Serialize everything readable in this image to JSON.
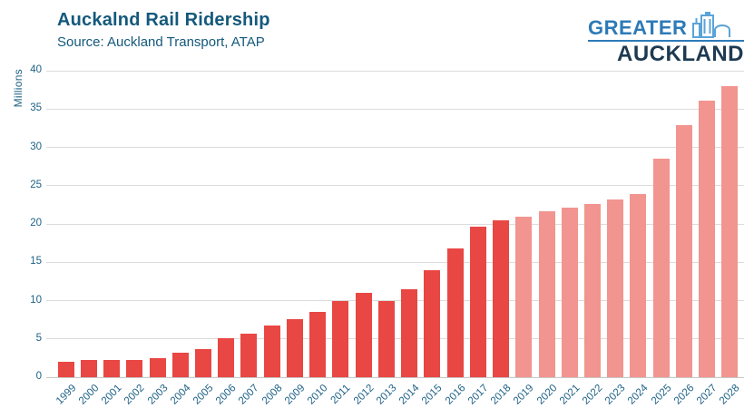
{
  "header": {
    "title": "Auckalnd Rail Ridership",
    "subtitle": "Source: Auckland Transport, ATAP"
  },
  "logo": {
    "line1": "GREATER",
    "line2": "AUCKLAND",
    "icon": "city-buildings-icon",
    "line1_color": "#2d7ab8",
    "line2_color": "#1d3a52",
    "icon_color": "#5ba3d8"
  },
  "chart_data": {
    "type": "bar",
    "title": "Auckalnd Rail Ridership",
    "subtitle": "Source: Auckland Transport, ATAP",
    "xlabel": "",
    "ylabel": "Millions",
    "ylim": [
      0,
      40
    ],
    "yticks": [
      0,
      5,
      10,
      15,
      20,
      25,
      30,
      35,
      40
    ],
    "grid": "horizontal",
    "legend_position": "none",
    "categories": [
      "1999",
      "2000",
      "2001",
      "2002",
      "2003",
      "2004",
      "2005",
      "2006",
      "2007",
      "2008",
      "2009",
      "2010",
      "2011",
      "2012",
      "2013",
      "2014",
      "2015",
      "2016",
      "2017",
      "2018",
      "2019",
      "2020",
      "2021",
      "2022",
      "2023",
      "2024",
      "2025",
      "2026",
      "2027",
      "2028"
    ],
    "values": [
      2.0,
      2.3,
      2.2,
      2.2,
      2.5,
      3.2,
      3.7,
      5.1,
      5.7,
      6.8,
      7.6,
      8.5,
      9.9,
      11.0,
      10.0,
      11.5,
      14.0,
      16.8,
      19.6,
      20.5,
      21.0,
      21.6,
      22.1,
      22.6,
      23.2,
      23.9,
      28.5,
      32.9,
      36.1,
      38.0
    ],
    "actual_color": "#e84744",
    "forecast_color": "#f2948f",
    "forecast_start_year": "2019"
  }
}
